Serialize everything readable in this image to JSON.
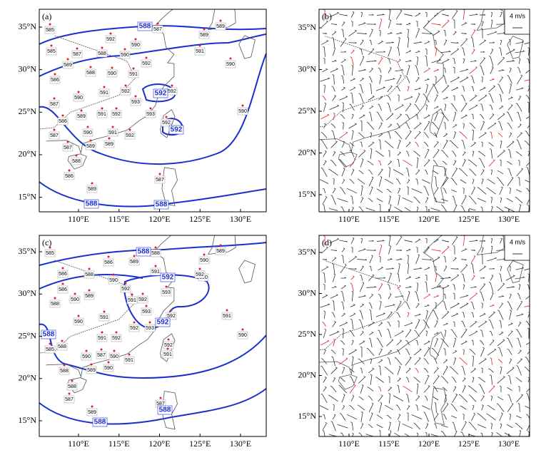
{
  "panels": [
    {
      "label": "(a)",
      "lat_ticks": [
        "35°N",
        "30°N",
        "25°N",
        "20°N",
        "15°N"
      ],
      "lon_ticks": [
        "110°E",
        "115°E",
        "120°E",
        "125°E",
        "130°E"
      ],
      "contour_labels": [
        588,
        592,
        592,
        588,
        588
      ],
      "stations": [
        585,
        592,
        587,
        589,
        589,
        590,
        585,
        587,
        588,
        590,
        592,
        591,
        589,
        588,
        590,
        591,
        592,
        590,
        586,
        590,
        591,
        592,
        593,
        587,
        589,
        591,
        592,
        593,
        590,
        586,
        592,
        590,
        591,
        592,
        587,
        587,
        589,
        589,
        588,
        586,
        589,
        587
      ]
    },
    {
      "label": "(b)",
      "lat_ticks": [
        "35°N",
        "30°N",
        "25°N",
        "20°N",
        "15°N"
      ],
      "lon_ticks": [
        "110°E",
        "115°E",
        "120°E",
        "125°E",
        "130°E"
      ],
      "scale_label": "4 m/s"
    },
    {
      "label": "(c)",
      "lat_ticks": [
        "35°N",
        "30°N",
        "25°N",
        "20°N",
        "15°N"
      ],
      "lon_ticks": [
        "110°E",
        "115°E",
        "120°E",
        "125°E",
        "130°E"
      ],
      "contour_labels": [
        588,
        592,
        592,
        588,
        588,
        588
      ],
      "stations": [
        585,
        586,
        589,
        591,
        588,
        590,
        589,
        586,
        588,
        590,
        590,
        586,
        590,
        589,
        592,
        591,
        592,
        593,
        588,
        590,
        591,
        593,
        592,
        591,
        590,
        588,
        591,
        592,
        592,
        593,
        585,
        590,
        587,
        590,
        591,
        592,
        591,
        588,
        589,
        590,
        588,
        587,
        589,
        587,
        592
      ]
    },
    {
      "label": "(d)",
      "lat_ticks": [
        "35°N",
        "30°N",
        "25°N",
        "20°N",
        "15°N"
      ],
      "lon_ticks": [
        "110°E",
        "115°E",
        "120°E",
        "125°E",
        "130°E"
      ],
      "scale_label": "4 m/s"
    }
  ]
}
